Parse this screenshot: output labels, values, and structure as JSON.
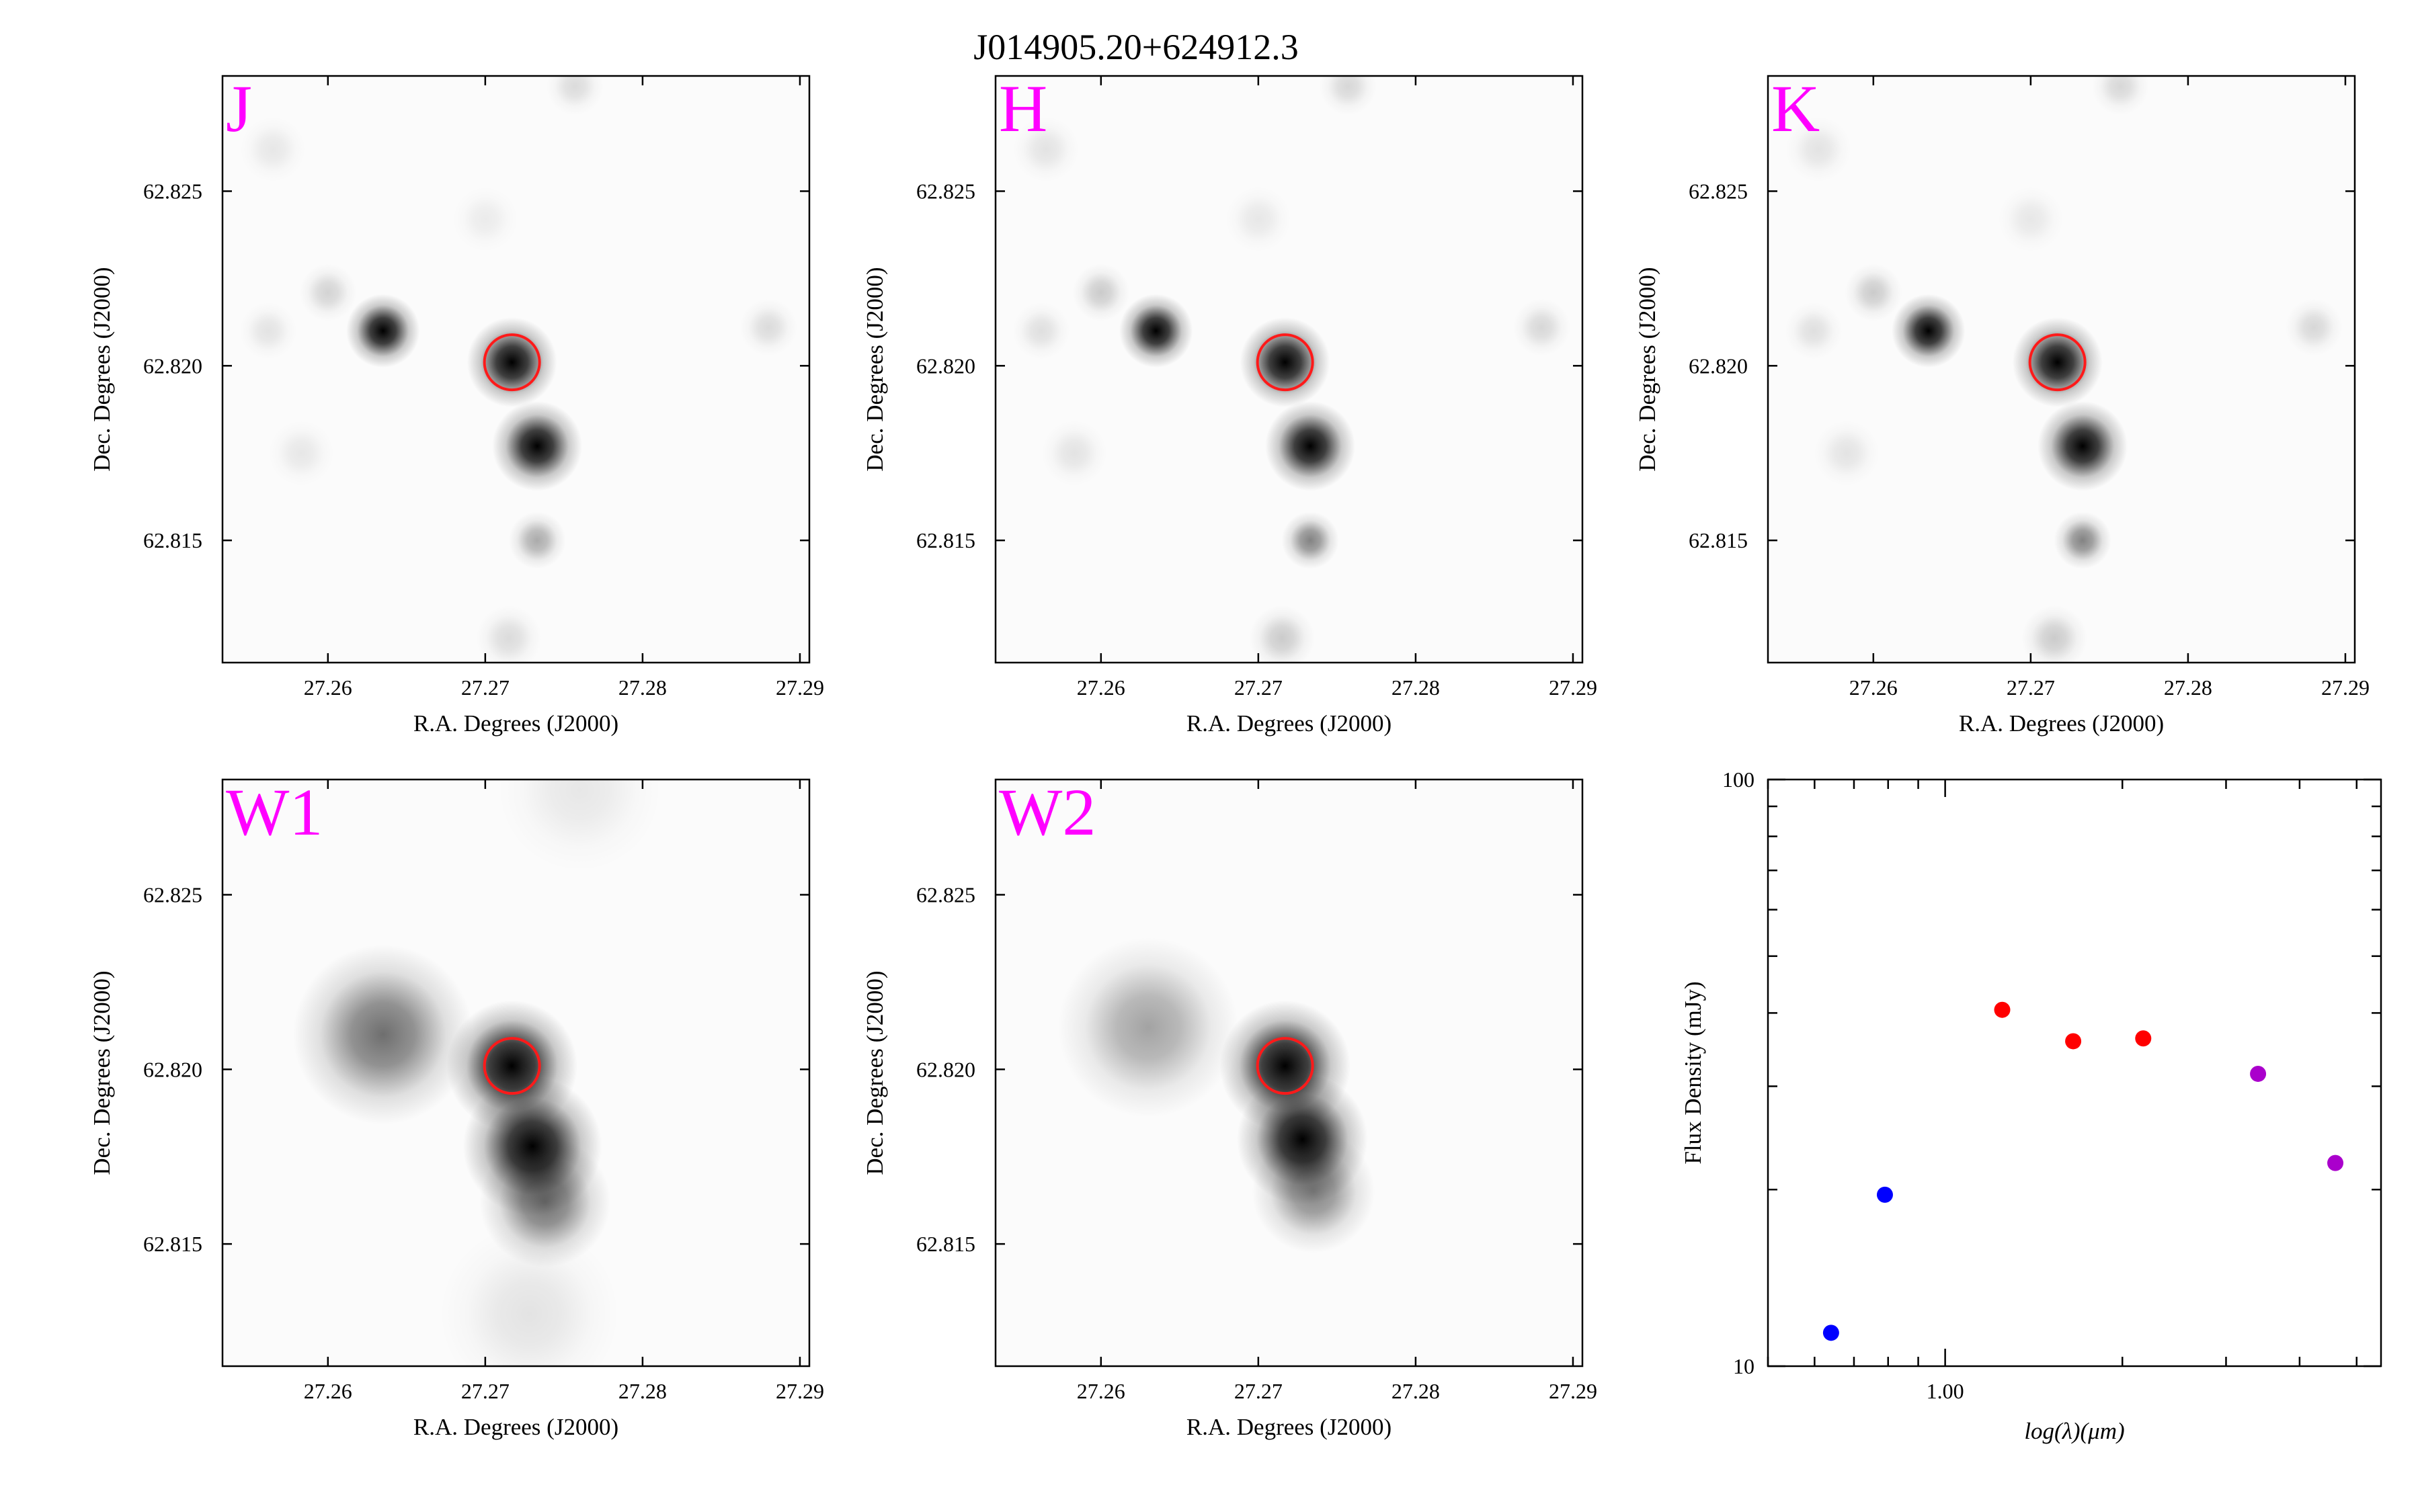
{
  "figure_title": "J014905.20+624912.3",
  "chart_data": [
    {
      "type": "heatmap",
      "panel": "J",
      "band_label": "J",
      "xlabel": "R.A. Degrees (J2000)",
      "ylabel": "Dec. Degrees (J2000)",
      "xlim": [
        27.2533,
        27.2906
      ],
      "ylim": [
        62.8115,
        62.8283
      ],
      "x_ticks": [
        "27.26",
        "27.27",
        "27.28",
        "27.29"
      ],
      "y_ticks": [
        "62.815",
        "62.820",
        "62.825"
      ],
      "target": {
        "ra": 27.2717,
        "dec": 62.8201
      },
      "sources": [
        {
          "ra": 27.2717,
          "dec": 62.8201,
          "peak": 1.0,
          "sigma": 0.0011
        },
        {
          "ra": 27.2733,
          "dec": 62.8177,
          "peak": 1.0,
          "sigma": 0.0011
        },
        {
          "ra": 27.2635,
          "dec": 62.821,
          "peak": 0.95,
          "sigma": 0.0009
        },
        {
          "ra": 27.2733,
          "dec": 62.815,
          "peak": 0.2,
          "sigma": 0.0007
        },
        {
          "ra": 27.26,
          "dec": 62.8221,
          "peak": 0.1,
          "sigma": 0.0007
        },
        {
          "ra": 27.2715,
          "dec": 62.8122,
          "peak": 0.08,
          "sigma": 0.0008
        },
        {
          "ra": 27.288,
          "dec": 62.8211,
          "peak": 0.08,
          "sigma": 0.0007
        },
        {
          "ra": 27.2757,
          "dec": 62.828,
          "peak": 0.08,
          "sigma": 0.0007
        },
        {
          "ra": 27.2562,
          "dec": 62.821,
          "peak": 0.06,
          "sigma": 0.0007
        },
        {
          "ra": 27.2583,
          "dec": 62.8175,
          "peak": 0.05,
          "sigma": 0.0008
        },
        {
          "ra": 27.2565,
          "dec": 62.8262,
          "peak": 0.05,
          "sigma": 0.0008
        },
        {
          "ra": 27.27,
          "dec": 62.8242,
          "peak": 0.04,
          "sigma": 0.0008
        }
      ]
    },
    {
      "type": "heatmap",
      "panel": "H",
      "band_label": "H",
      "xlabel": "R.A. Degrees (J2000)",
      "ylabel": "Dec. Degrees (J2000)",
      "xlim": [
        27.2533,
        27.2906
      ],
      "ylim": [
        62.8115,
        62.8283
      ],
      "x_ticks": [
        "27.26",
        "27.27",
        "27.28",
        "27.29"
      ],
      "y_ticks": [
        "62.815",
        "62.820",
        "62.825"
      ],
      "target": {
        "ra": 27.2717,
        "dec": 62.8201
      },
      "sources": [
        {
          "ra": 27.2717,
          "dec": 62.8201,
          "peak": 1.0,
          "sigma": 0.0011
        },
        {
          "ra": 27.2733,
          "dec": 62.8177,
          "peak": 1.0,
          "sigma": 0.0011
        },
        {
          "ra": 27.2635,
          "dec": 62.821,
          "peak": 0.95,
          "sigma": 0.0009
        },
        {
          "ra": 27.2733,
          "dec": 62.815,
          "peak": 0.3,
          "sigma": 0.0007
        },
        {
          "ra": 27.26,
          "dec": 62.8221,
          "peak": 0.12,
          "sigma": 0.0007
        },
        {
          "ra": 27.2715,
          "dec": 62.8122,
          "peak": 0.12,
          "sigma": 0.0008
        },
        {
          "ra": 27.288,
          "dec": 62.8211,
          "peak": 0.09,
          "sigma": 0.0007
        },
        {
          "ra": 27.2757,
          "dec": 62.828,
          "peak": 0.09,
          "sigma": 0.0007
        },
        {
          "ra": 27.2562,
          "dec": 62.821,
          "peak": 0.07,
          "sigma": 0.0007
        },
        {
          "ra": 27.2583,
          "dec": 62.8175,
          "peak": 0.06,
          "sigma": 0.0008
        },
        {
          "ra": 27.2565,
          "dec": 62.8262,
          "peak": 0.06,
          "sigma": 0.0008
        },
        {
          "ra": 27.27,
          "dec": 62.8242,
          "peak": 0.05,
          "sigma": 0.0008
        }
      ]
    },
    {
      "type": "heatmap",
      "panel": "K",
      "band_label": "K",
      "xlabel": "R.A. Degrees (J2000)",
      "ylabel": "Dec. Degrees (J2000)",
      "xlim": [
        27.2533,
        27.2906
      ],
      "ylim": [
        62.8115,
        62.8283
      ],
      "x_ticks": [
        "27.26",
        "27.27",
        "27.28",
        "27.29"
      ],
      "y_ticks": [
        "62.815",
        "62.820",
        "62.825"
      ],
      "target": {
        "ra": 27.2717,
        "dec": 62.8201
      },
      "sources": [
        {
          "ra": 27.2717,
          "dec": 62.8201,
          "peak": 1.0,
          "sigma": 0.0011
        },
        {
          "ra": 27.2733,
          "dec": 62.8177,
          "peak": 1.0,
          "sigma": 0.0011
        },
        {
          "ra": 27.2635,
          "dec": 62.821,
          "peak": 0.95,
          "sigma": 0.0009
        },
        {
          "ra": 27.2733,
          "dec": 62.815,
          "peak": 0.3,
          "sigma": 0.0007
        },
        {
          "ra": 27.26,
          "dec": 62.8221,
          "peak": 0.12,
          "sigma": 0.0007
        },
        {
          "ra": 27.2715,
          "dec": 62.8122,
          "peak": 0.12,
          "sigma": 0.0008
        },
        {
          "ra": 27.288,
          "dec": 62.8211,
          "peak": 0.09,
          "sigma": 0.0007
        },
        {
          "ra": 27.2757,
          "dec": 62.828,
          "peak": 0.09,
          "sigma": 0.0007
        },
        {
          "ra": 27.2562,
          "dec": 62.821,
          "peak": 0.07,
          "sigma": 0.0007
        },
        {
          "ra": 27.2583,
          "dec": 62.8175,
          "peak": 0.06,
          "sigma": 0.0008
        },
        {
          "ra": 27.2565,
          "dec": 62.8262,
          "peak": 0.06,
          "sigma": 0.0008
        },
        {
          "ra": 27.27,
          "dec": 62.8242,
          "peak": 0.05,
          "sigma": 0.0008
        }
      ]
    },
    {
      "type": "heatmap",
      "panel": "W1",
      "band_label": "W1",
      "xlabel": "R.A. Degrees (J2000)",
      "ylabel": "Dec. Degrees (J2000)",
      "xlim": [
        27.2533,
        27.2906
      ],
      "ylim": [
        62.8115,
        62.8283
      ],
      "x_ticks": [
        "27.26",
        "27.27",
        "27.28",
        "27.29"
      ],
      "y_ticks": [
        "62.815",
        "62.820",
        "62.825"
      ],
      "target": {
        "ra": 27.2717,
        "dec": 62.8201
      },
      "sources": [
        {
          "ra": 27.2717,
          "dec": 62.8201,
          "peak": 1.0,
          "sigma": 0.0016
        },
        {
          "ra": 27.273,
          "dec": 62.8178,
          "peak": 0.95,
          "sigma": 0.0017
        },
        {
          "ra": 27.2738,
          "dec": 62.8162,
          "peak": 0.35,
          "sigma": 0.0016
        },
        {
          "ra": 27.2635,
          "dec": 62.821,
          "peak": 0.35,
          "sigma": 0.0022
        },
        {
          "ra": 27.2728,
          "dec": 62.813,
          "peak": 0.06,
          "sigma": 0.0022
        },
        {
          "ra": 27.276,
          "dec": 62.828,
          "peak": 0.05,
          "sigma": 0.002
        }
      ]
    },
    {
      "type": "heatmap",
      "panel": "W2",
      "band_label": "W2",
      "xlabel": "R.A. Degrees (J2000)",
      "ylabel": "Dec. Degrees (J2000)",
      "xlim": [
        27.2533,
        27.2906
      ],
      "ylim": [
        62.8115,
        62.8283
      ],
      "x_ticks": [
        "27.26",
        "27.27",
        "27.28",
        "27.29"
      ],
      "y_ticks": [
        "62.815",
        "62.820",
        "62.825"
      ],
      "target": {
        "ra": 27.2717,
        "dec": 62.8201
      },
      "sources": [
        {
          "ra": 27.2717,
          "dec": 62.8201,
          "peak": 1.0,
          "sigma": 0.0016
        },
        {
          "ra": 27.2728,
          "dec": 62.818,
          "peak": 0.85,
          "sigma": 0.0016
        },
        {
          "ra": 27.2735,
          "dec": 62.8165,
          "peak": 0.3,
          "sigma": 0.0015
        },
        {
          "ra": 27.263,
          "dec": 62.8212,
          "peak": 0.22,
          "sigma": 0.0022
        }
      ]
    },
    {
      "type": "scatter",
      "panel": "SED",
      "xlabel": "log(λ)(μm)",
      "ylabel": "Flux Density (mJy)",
      "x_scale": "log",
      "y_scale": "log",
      "xlim": [
        0.5,
        5.5
      ],
      "ylim": [
        10,
        100
      ],
      "x_tick_labels": [
        {
          "value": 1.0,
          "label": "1.00"
        }
      ],
      "y_tick_labels": [
        {
          "value": 10,
          "label": "10"
        },
        {
          "value": 100,
          "label": "100"
        }
      ],
      "series": [
        {
          "color": "#0000ff",
          "points": [
            {
              "x": 0.64,
              "y": 11.4
            },
            {
              "x": 0.79,
              "y": 19.6
            }
          ]
        },
        {
          "color": "#ff0000",
          "points": [
            {
              "x": 1.25,
              "y": 40.5
            },
            {
              "x": 1.65,
              "y": 35.8
            },
            {
              "x": 2.17,
              "y": 36.2
            }
          ]
        },
        {
          "color": "#aa00cc",
          "points": [
            {
              "x": 3.4,
              "y": 31.5
            },
            {
              "x": 4.6,
              "y": 22.2
            }
          ]
        }
      ]
    }
  ]
}
